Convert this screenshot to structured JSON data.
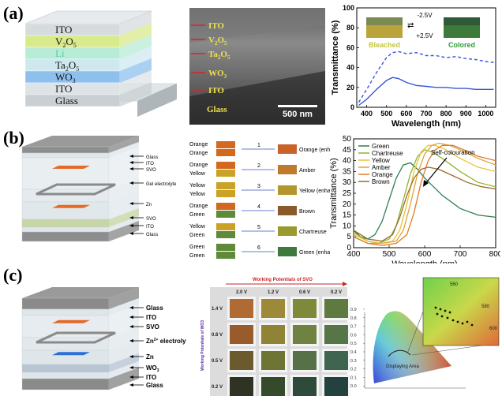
{
  "panel_letters": [
    "(a)",
    "(b)",
    "(c)"
  ],
  "a": {
    "stack_layers": [
      "ITO",
      "V2O5",
      "Li",
      "Ta2O5",
      "WO3",
      "ITO",
      "Glass"
    ],
    "stack_layer_colors": [
      "#d6dbde",
      "#d9ea8c",
      "#b8ecd6",
      "#cfe8ef",
      "#8ec0ee",
      "#dde3e6",
      "#c9cfd2"
    ],
    "sem_labels": [
      "ITO",
      "V2O5",
      "Ta2O5",
      "WO3",
      "ITO",
      "Glass"
    ],
    "sem_scale_bar": "500 nm"
  },
  "b": {
    "device_labels": [
      "Glass",
      "ITO",
      "SVO",
      "Gel electrolyte",
      "Zn",
      "SVO",
      "ITO",
      "Glass"
    ],
    "combos": [
      {
        "top": "Orange",
        "bottom": "Orange",
        "num": "1",
        "result": "Orange (enhanced)",
        "top_color": "#d2691e",
        "bottom_color": "#d2691e",
        "result_color": "#c8642a"
      },
      {
        "top": "Orange",
        "bottom": "Yellow",
        "num": "2",
        "result": "Amber",
        "top_color": "#d2691e",
        "bottom_color": "#c9a227",
        "result_color": "#bf7a2e"
      },
      {
        "top": "Yellow",
        "bottom": "Yellow",
        "num": "3",
        "result": "Yellow (enhanced)",
        "top_color": "#c9a227",
        "bottom_color": "#c9a227",
        "result_color": "#b5962c"
      },
      {
        "top": "Orange",
        "bottom": "Green",
        "num": "4",
        "result": "Brown",
        "top_color": "#d2691e",
        "bottom_color": "#5f8a3a",
        "result_color": "#8a5a2b"
      },
      {
        "top": "Yellow",
        "bottom": "Green",
        "num": "5",
        "result": "Chartreuse",
        "top_color": "#c9a227",
        "bottom_color": "#5f8a3a",
        "result_color": "#9a9a2e"
      },
      {
        "top": "Green",
        "bottom": "Green",
        "num": "6",
        "result": "Green (enhanced)",
        "top_color": "#5f8a3a",
        "bottom_color": "#5f8a3a",
        "result_color": "#3e7a3c"
      }
    ]
  },
  "c": {
    "device_labels": [
      "Glass",
      "ITO",
      "SVO",
      "Zn2+ electrolyte",
      "Zn",
      "WO3",
      "ITO",
      "Glass"
    ],
    "grid_header": "Working Potentials of SVO",
    "grid_side": "Working Potentials of WO3",
    "columns": [
      "2.0 V",
      "1.2 V",
      "0.6 V",
      "0.2 V"
    ],
    "rows": [
      "1.4 V",
      "0.8 V",
      "0.5 V",
      "0.2 V"
    ],
    "cell_colors": [
      [
        "#b06a34",
        "#9c8a3a",
        "#7e8a3a",
        "#5e7a3e"
      ],
      [
        "#9a5b2c",
        "#8f8436",
        "#6f8242",
        "#567648"
      ],
      [
        "#6a5a2e",
        "#6d7434",
        "#567048",
        "#3f6450"
      ],
      [
        "#2f3324",
        "#344a2a",
        "#2e4a3a",
        "#23413e"
      ]
    ],
    "cie_axis_ticks": [
      "0.9",
      "0.8",
      "0.7",
      "0.6",
      "0.5",
      "0.4",
      "0.3",
      "0.2",
      "0.1",
      "0.0"
    ],
    "cie_label": "Displaying Area",
    "cie_inset_ticks": [
      "560",
      "580",
      "600"
    ]
  },
  "chart_data": [
    {
      "type": "line",
      "id": "a-transmittance",
      "xlabel": "Wavelength (nm)",
      "ylabel": "Transmittance (%)",
      "xlim": [
        350,
        1050
      ],
      "ylim": [
        0,
        100
      ],
      "xticks": [
        400,
        500,
        600,
        700,
        800,
        900,
        1000
      ],
      "yticks": [
        0,
        20,
        40,
        60,
        80,
        100
      ],
      "inset_labels": {
        "bleached": "Bleached",
        "colored": "Colored",
        "to_colored": "-2.5V",
        "to_bleached": "+2.5V"
      },
      "series": [
        {
          "name": "Bleached",
          "style": "dashed",
          "color": "#3b55d9",
          "x": [
            360,
            400,
            450,
            500,
            530,
            560,
            600,
            650,
            700,
            750,
            800,
            850,
            900,
            950,
            1000,
            1040
          ],
          "y": [
            5,
            18,
            35,
            50,
            55,
            56,
            54,
            55,
            52,
            52,
            50,
            51,
            49,
            48,
            46,
            45
          ]
        },
        {
          "name": "Colored",
          "style": "solid",
          "color": "#3b55d9",
          "x": [
            360,
            400,
            450,
            500,
            530,
            560,
            600,
            650,
            700,
            750,
            800,
            850,
            900,
            950,
            1000,
            1040
          ],
          "y": [
            2,
            8,
            18,
            27,
            30,
            29,
            25,
            22,
            21,
            20,
            20,
            19,
            19,
            18,
            18,
            18
          ]
        }
      ]
    },
    {
      "type": "line",
      "id": "b-transmittance",
      "xlabel": "Wavelength (nm)",
      "ylabel": "Transmittance (%)",
      "xlim": [
        400,
        800
      ],
      "ylim": [
        0,
        50
      ],
      "xticks": [
        400,
        500,
        600,
        700,
        800
      ],
      "yticks": [
        0,
        5,
        10,
        15,
        20,
        25,
        30,
        35,
        40,
        45,
        50
      ],
      "annotation": "Self-colouration",
      "legend_position": "top-left",
      "series": [
        {
          "name": "Green",
          "color": "#2e7d4f",
          "x": [
            400,
            420,
            440,
            460,
            480,
            500,
            520,
            540,
            560,
            580,
            600,
            650,
            700,
            750,
            800
          ],
          "y": [
            8,
            5,
            4,
            6,
            12,
            22,
            32,
            38,
            39,
            36,
            32,
            24,
            18,
            15,
            14
          ]
        },
        {
          "name": "Chartreuse",
          "color": "#8db52f",
          "x": [
            400,
            440,
            470,
            500,
            520,
            540,
            560,
            580,
            600,
            620,
            650,
            700,
            750,
            800
          ],
          "y": [
            7,
            3,
            2,
            4,
            10,
            22,
            34,
            42,
            45,
            44,
            41,
            35,
            30,
            28
          ]
        },
        {
          "name": "Yellow",
          "color": "#e6c43a",
          "x": [
            400,
            440,
            480,
            510,
            530,
            550,
            570,
            590,
            610,
            630,
            660,
            700,
            750,
            800
          ],
          "y": [
            6,
            3,
            2,
            3,
            8,
            20,
            35,
            44,
            47,
            47,
            45,
            41,
            37,
            35
          ]
        },
        {
          "name": "Amber",
          "color": "#e0a436",
          "x": [
            400,
            440,
            480,
            520,
            540,
            560,
            580,
            600,
            620,
            640,
            670,
            700,
            750,
            800
          ],
          "y": [
            5,
            2,
            2,
            3,
            8,
            20,
            34,
            43,
            47,
            48,
            47,
            45,
            41,
            38
          ]
        },
        {
          "name": "Orange",
          "color": "#e07b2a",
          "x": [
            400,
            440,
            480,
            520,
            550,
            570,
            590,
            610,
            630,
            650,
            680,
            710,
            750,
            800
          ],
          "y": [
            5,
            2,
            1,
            2,
            6,
            16,
            30,
            40,
            45,
            47,
            47,
            45,
            42,
            40
          ]
        },
        {
          "name": "Brown",
          "color": "#9b6a2b",
          "x": [
            400,
            440,
            480,
            510,
            530,
            550,
            570,
            590,
            610,
            640,
            680,
            720,
            760,
            800
          ],
          "y": [
            8,
            4,
            3,
            6,
            14,
            24,
            32,
            36,
            37,
            36,
            33,
            30,
            28,
            27
          ]
        }
      ]
    }
  ]
}
